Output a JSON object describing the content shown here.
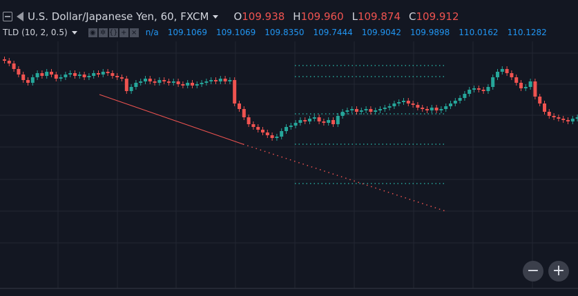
{
  "header": {
    "symbol_title": "U.S. Dollar/Japanese Yen, 60, FXCM",
    "ohlc": [
      {
        "key": "O",
        "value": "109.938"
      },
      {
        "key": "H",
        "value": "109.960"
      },
      {
        "key": "L",
        "value": "109.874"
      },
      {
        "key": "C",
        "value": "109.912"
      }
    ]
  },
  "indicator": {
    "name": "TLD (10, 2, 0.5)",
    "na": "n/a",
    "values": [
      "109.1069",
      "109.1069",
      "109.8350",
      "109.7444",
      "109.9042",
      "109.9898",
      "110.0162",
      "110.1282"
    ]
  },
  "controls": {
    "zoom_out": "−",
    "zoom_in": "+"
  },
  "colors": {
    "background": "#131722",
    "up": "#26a69a",
    "down": "#ef5350",
    "grid": "#232733",
    "level": "#26a69a",
    "trend": "#ef5350"
  },
  "icons": [
    "collapse-icon",
    "flag-icon",
    "eye-icon",
    "settings-icon",
    "source-icon",
    "add-icon",
    "close-icon"
  ]
}
